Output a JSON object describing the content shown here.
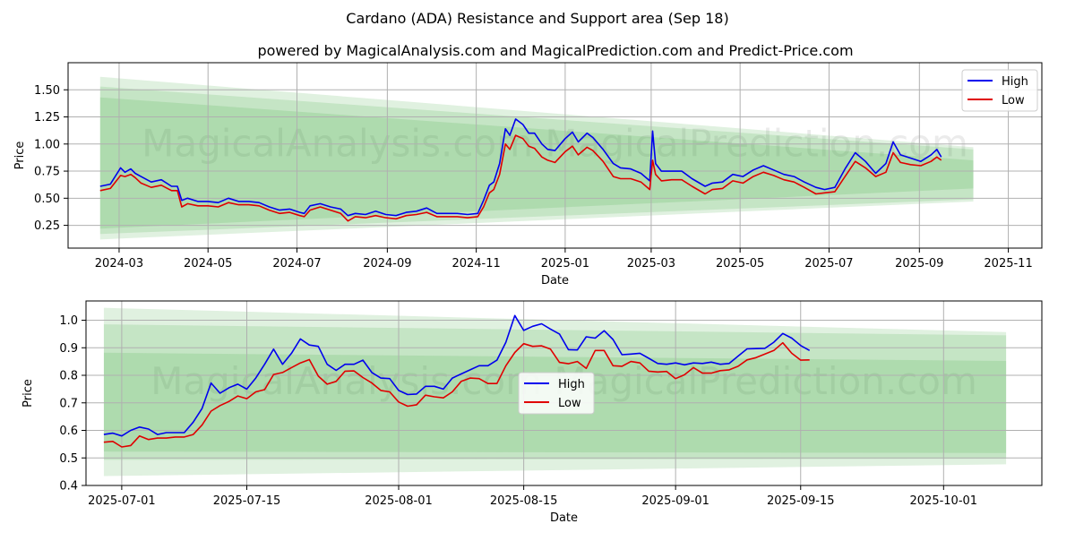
{
  "title": "Cardano (ADA) Resistance and Support area (Sep 18)",
  "subtitle": "powered by MagicalAnalysis.com and MagicalPrediction.com and Predict-Price.com",
  "watermark": "MagicalAnalysis.com   MagicalPrediction.com",
  "colors": {
    "high": "#0000ee",
    "low": "#e00000",
    "band": "#2ca02c",
    "grid": "#b0b0b0"
  },
  "chart_data": [
    {
      "type": "line",
      "xlabel": "Date",
      "ylabel": "Price",
      "xlim": [
        "2024-01-26",
        "2025-11-24"
      ],
      "ylim": [
        0.04,
        1.75
      ],
      "xticks": [
        "2024-03",
        "2024-05",
        "2024-07",
        "2024-09",
        "2024-11",
        "2025-01",
        "2025-03",
        "2025-05",
        "2025-07",
        "2025-09",
        "2025-11"
      ],
      "yticks": [
        "0.25",
        "0.50",
        "0.75",
        "1.00",
        "1.25",
        "1.50"
      ],
      "grid": true,
      "legend": "top-right",
      "x": [
        "2024-02-17",
        "2024-02-24",
        "2024-03-02",
        "2024-03-05",
        "2024-03-09",
        "2024-03-12",
        "2024-03-16",
        "2024-03-23",
        "2024-03-30",
        "2024-04-06",
        "2024-04-10",
        "2024-04-13",
        "2024-04-17",
        "2024-04-24",
        "2024-05-01",
        "2024-05-08",
        "2024-05-15",
        "2024-05-22",
        "2024-05-29",
        "2024-06-05",
        "2024-06-12",
        "2024-06-19",
        "2024-06-26",
        "2024-07-03",
        "2024-07-06",
        "2024-07-10",
        "2024-07-17",
        "2024-07-24",
        "2024-07-31",
        "2024-08-05",
        "2024-08-10",
        "2024-08-17",
        "2024-08-24",
        "2024-08-31",
        "2024-09-07",
        "2024-09-14",
        "2024-09-21",
        "2024-09-28",
        "2024-10-05",
        "2024-10-12",
        "2024-10-19",
        "2024-10-26",
        "2024-11-02",
        "2024-11-06",
        "2024-11-10",
        "2024-11-13",
        "2024-11-17",
        "2024-11-21",
        "2024-11-24",
        "2024-11-28",
        "2024-12-03",
        "2024-12-07",
        "2024-12-11",
        "2024-12-16",
        "2024-12-20",
        "2024-12-25",
        "2025-01-01",
        "2025-01-06",
        "2025-01-10",
        "2025-01-16",
        "2025-01-20",
        "2025-01-27",
        "2025-02-03",
        "2025-02-08",
        "2025-02-15",
        "2025-02-22",
        "2025-02-28",
        "2025-03-02",
        "2025-03-04",
        "2025-03-08",
        "2025-03-15",
        "2025-03-22",
        "2025-03-29",
        "2025-04-07",
        "2025-04-12",
        "2025-04-19",
        "2025-04-26",
        "2025-05-03",
        "2025-05-10",
        "2025-05-17",
        "2025-05-24",
        "2025-05-31",
        "2025-06-07",
        "2025-06-14",
        "2025-06-22",
        "2025-06-28",
        "2025-07-05",
        "2025-07-12",
        "2025-07-19",
        "2025-07-26",
        "2025-08-02",
        "2025-08-09",
        "2025-08-14",
        "2025-08-19",
        "2025-08-26",
        "2025-09-02",
        "2025-09-09",
        "2025-09-13",
        "2025-09-16"
      ],
      "series": [
        {
          "name": "High",
          "values": [
            0.61,
            0.63,
            0.78,
            0.74,
            0.77,
            0.73,
            0.7,
            0.65,
            0.67,
            0.61,
            0.61,
            0.48,
            0.5,
            0.47,
            0.47,
            0.46,
            0.5,
            0.47,
            0.47,
            0.46,
            0.42,
            0.39,
            0.4,
            0.37,
            0.36,
            0.43,
            0.45,
            0.42,
            0.4,
            0.34,
            0.36,
            0.35,
            0.38,
            0.35,
            0.34,
            0.37,
            0.38,
            0.41,
            0.36,
            0.36,
            0.36,
            0.35,
            0.36,
            0.48,
            0.62,
            0.65,
            0.82,
            1.14,
            1.08,
            1.23,
            1.18,
            1.1,
            1.1,
            1.0,
            0.95,
            0.94,
            1.05,
            1.11,
            1.02,
            1.1,
            1.06,
            0.95,
            0.82,
            0.78,
            0.77,
            0.73,
            0.66,
            1.12,
            0.82,
            0.75,
            0.75,
            0.75,
            0.68,
            0.61,
            0.64,
            0.65,
            0.72,
            0.7,
            0.76,
            0.8,
            0.76,
            0.72,
            0.7,
            0.65,
            0.6,
            0.58,
            0.6,
            0.77,
            0.92,
            0.84,
            0.73,
            0.82,
            1.02,
            0.9,
            0.87,
            0.84,
            0.9,
            0.95,
            0.88
          ]
        },
        {
          "name": "Low",
          "values": [
            0.57,
            0.59,
            0.71,
            0.7,
            0.72,
            0.69,
            0.64,
            0.6,
            0.62,
            0.57,
            0.57,
            0.42,
            0.45,
            0.43,
            0.43,
            0.42,
            0.46,
            0.44,
            0.44,
            0.43,
            0.39,
            0.36,
            0.37,
            0.34,
            0.33,
            0.39,
            0.42,
            0.39,
            0.36,
            0.29,
            0.33,
            0.32,
            0.34,
            0.32,
            0.31,
            0.34,
            0.35,
            0.37,
            0.33,
            0.33,
            0.33,
            0.32,
            0.33,
            0.42,
            0.55,
            0.58,
            0.72,
            1.0,
            0.95,
            1.08,
            1.05,
            0.98,
            0.96,
            0.88,
            0.85,
            0.83,
            0.93,
            0.98,
            0.9,
            0.97,
            0.94,
            0.84,
            0.7,
            0.68,
            0.68,
            0.65,
            0.58,
            0.85,
            0.72,
            0.66,
            0.67,
            0.67,
            0.61,
            0.54,
            0.58,
            0.59,
            0.66,
            0.64,
            0.7,
            0.74,
            0.71,
            0.67,
            0.65,
            0.6,
            0.54,
            0.55,
            0.56,
            0.7,
            0.84,
            0.78,
            0.7,
            0.74,
            0.92,
            0.83,
            0.81,
            0.8,
            0.84,
            0.88,
            0.85
          ]
        }
      ],
      "bands": [
        {
          "start_date": "2024-02-17",
          "end_date": "2025-10-08",
          "start": [
            0.12,
            1.62
          ],
          "end": [
            0.47,
            0.97
          ]
        },
        {
          "start_date": "2024-02-17",
          "end_date": "2025-10-08",
          "start": [
            0.17,
            1.53
          ],
          "end": [
            0.49,
            0.95
          ]
        },
        {
          "start_date": "2024-02-17",
          "end_date": "2025-10-08",
          "start": [
            0.22,
            1.43
          ],
          "end": [
            0.59,
            0.85
          ]
        }
      ]
    },
    {
      "type": "line",
      "xlabel": "Date",
      "ylabel": "Price",
      "xlim": [
        "2025-06-27",
        "2025-10-12"
      ],
      "ylim": [
        0.4,
        1.07
      ],
      "xticks": [
        "2025-07-01",
        "2025-07-15",
        "2025-08-01",
        "2025-08-15",
        "2025-09-01",
        "2025-09-15",
        "2025-10-01"
      ],
      "yticks": [
        "0.4",
        "0.5",
        "0.6",
        "0.7",
        "0.8",
        "0.9",
        "1.0"
      ],
      "grid": true,
      "legend": "center",
      "x": [
        "2025-06-29",
        "2025-06-30",
        "2025-07-01",
        "2025-07-02",
        "2025-07-03",
        "2025-07-04",
        "2025-07-05",
        "2025-07-06",
        "2025-07-07",
        "2025-07-08",
        "2025-07-09",
        "2025-07-10",
        "2025-07-11",
        "2025-07-12",
        "2025-07-13",
        "2025-07-14",
        "2025-07-15",
        "2025-07-16",
        "2025-07-17",
        "2025-07-18",
        "2025-07-19",
        "2025-07-20",
        "2025-07-21",
        "2025-07-22",
        "2025-07-23",
        "2025-07-24",
        "2025-07-25",
        "2025-07-26",
        "2025-07-27",
        "2025-07-28",
        "2025-07-29",
        "2025-07-30",
        "2025-07-31",
        "2025-08-01",
        "2025-08-02",
        "2025-08-03",
        "2025-08-04",
        "2025-08-05",
        "2025-08-06",
        "2025-08-07",
        "2025-08-08",
        "2025-08-09",
        "2025-08-10",
        "2025-08-11",
        "2025-08-12",
        "2025-08-13",
        "2025-08-14",
        "2025-08-15",
        "2025-08-16",
        "2025-08-17",
        "2025-08-18",
        "2025-08-19",
        "2025-08-20",
        "2025-08-21",
        "2025-08-22",
        "2025-08-23",
        "2025-08-24",
        "2025-08-25",
        "2025-08-26",
        "2025-08-27",
        "2025-08-28",
        "2025-08-29",
        "2025-08-30",
        "2025-08-31",
        "2025-09-01",
        "2025-09-02",
        "2025-09-03",
        "2025-09-04",
        "2025-09-05",
        "2025-09-06",
        "2025-09-07",
        "2025-09-08",
        "2025-09-09",
        "2025-09-10",
        "2025-09-11",
        "2025-09-12",
        "2025-09-13",
        "2025-09-14",
        "2025-09-15",
        "2025-09-16"
      ],
      "series": [
        {
          "name": "High",
          "values": [
            0.585,
            0.59,
            0.58,
            0.6,
            0.612,
            0.605,
            0.585,
            0.592,
            0.592,
            0.592,
            0.63,
            0.68,
            0.772,
            0.735,
            0.755,
            0.768,
            0.75,
            0.79,
            0.84,
            0.895,
            0.84,
            0.88,
            0.932,
            0.91,
            0.905,
            0.84,
            0.818,
            0.84,
            0.84,
            0.855,
            0.81,
            0.79,
            0.788,
            0.745,
            0.73,
            0.732,
            0.76,
            0.76,
            0.75,
            0.79,
            0.805,
            0.82,
            0.835,
            0.835,
            0.855,
            0.92,
            1.017,
            0.963,
            0.978,
            0.987,
            0.968,
            0.95,
            0.893,
            0.892,
            0.94,
            0.935,
            0.962,
            0.93,
            0.875,
            0.877,
            0.88,
            0.862,
            0.843,
            0.84,
            0.845,
            0.838,
            0.845,
            0.843,
            0.848,
            0.84,
            0.843,
            0.87,
            0.896,
            0.897,
            0.898,
            0.92,
            0.952,
            0.935,
            0.908,
            0.89
          ]
        },
        {
          "name": "Low",
          "values": [
            0.557,
            0.56,
            0.54,
            0.545,
            0.58,
            0.567,
            0.572,
            0.572,
            0.576,
            0.576,
            0.585,
            0.62,
            0.67,
            0.69,
            0.705,
            0.725,
            0.715,
            0.74,
            0.748,
            0.803,
            0.81,
            0.828,
            0.845,
            0.857,
            0.797,
            0.768,
            0.778,
            0.815,
            0.816,
            0.792,
            0.772,
            0.745,
            0.74,
            0.703,
            0.688,
            0.693,
            0.728,
            0.722,
            0.718,
            0.74,
            0.778,
            0.79,
            0.788,
            0.77,
            0.77,
            0.835,
            0.883,
            0.915,
            0.905,
            0.907,
            0.895,
            0.847,
            0.842,
            0.85,
            0.825,
            0.89,
            0.89,
            0.835,
            0.833,
            0.85,
            0.845,
            0.815,
            0.812,
            0.814,
            0.788,
            0.802,
            0.828,
            0.808,
            0.808,
            0.817,
            0.82,
            0.833,
            0.856,
            0.864,
            0.877,
            0.89,
            0.918,
            0.88,
            0.855,
            0.856
          ]
        }
      ],
      "bands": [
        {
          "start_date": "2025-06-29",
          "end_date": "2025-10-08",
          "start": [
            0.434,
            1.045
          ],
          "end": [
            0.477,
            0.957
          ]
        },
        {
          "start_date": "2025-06-29",
          "end_date": "2025-10-08",
          "start": [
            0.493,
            0.985
          ],
          "end": [
            0.497,
            0.945
          ]
        },
        {
          "start_date": "2025-06-29",
          "end_date": "2025-10-08",
          "start": [
            0.523,
            0.882
          ],
          "end": [
            0.518,
            0.852
          ]
        }
      ]
    }
  ]
}
